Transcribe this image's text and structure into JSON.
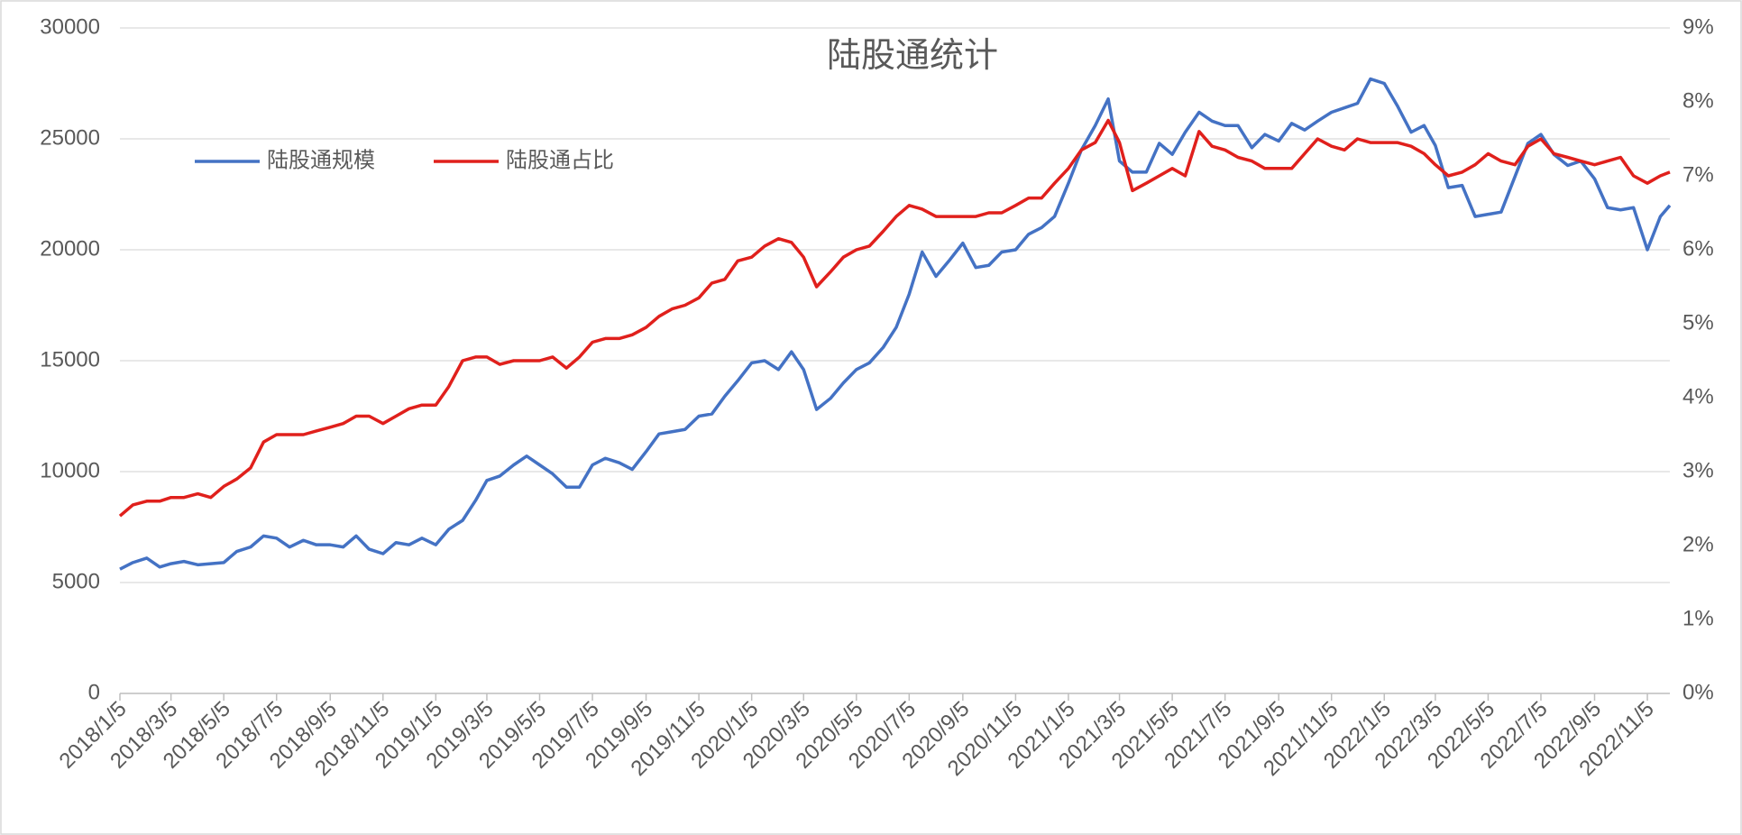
{
  "chart_data": {
    "type": "line",
    "title": "陆股通统计",
    "x": [
      "2018/1/5",
      "2018/1/20",
      "2018/2/5",
      "2018/2/20",
      "2018/3/5",
      "2018/3/20",
      "2018/4/5",
      "2018/4/20",
      "2018/5/5",
      "2018/5/20",
      "2018/6/5",
      "2018/6/20",
      "2018/7/5",
      "2018/7/20",
      "2018/8/5",
      "2018/8/20",
      "2018/9/5",
      "2018/9/20",
      "2018/10/5",
      "2018/10/20",
      "2018/11/5",
      "2018/11/20",
      "2018/12/5",
      "2018/12/20",
      "2019/1/5",
      "2019/1/20",
      "2019/2/5",
      "2019/2/20",
      "2019/3/5",
      "2019/3/20",
      "2019/4/5",
      "2019/4/20",
      "2019/5/5",
      "2019/5/20",
      "2019/6/5",
      "2019/6/20",
      "2019/7/5",
      "2019/7/20",
      "2019/8/5",
      "2019/8/20",
      "2019/9/5",
      "2019/9/20",
      "2019/10/5",
      "2019/10/20",
      "2019/11/5",
      "2019/11/20",
      "2019/12/5",
      "2019/12/20",
      "2020/1/5",
      "2020/1/20",
      "2020/2/5",
      "2020/2/20",
      "2020/3/5",
      "2020/3/20",
      "2020/4/5",
      "2020/4/20",
      "2020/5/5",
      "2020/5/20",
      "2020/6/5",
      "2020/6/20",
      "2020/7/5",
      "2020/7/20",
      "2020/8/5",
      "2020/8/20",
      "2020/9/5",
      "2020/9/20",
      "2020/10/5",
      "2020/10/20",
      "2020/11/5",
      "2020/11/20",
      "2020/12/5",
      "2020/12/20",
      "2021/1/5",
      "2021/1/20",
      "2021/2/5",
      "2021/2/20",
      "2021/3/5",
      "2021/3/20",
      "2021/4/5",
      "2021/4/20",
      "2021/5/5",
      "2021/5/20",
      "2021/6/5",
      "2021/6/20",
      "2021/7/5",
      "2021/7/20",
      "2021/8/5",
      "2021/8/20",
      "2021/9/5",
      "2021/9/20",
      "2021/10/5",
      "2021/10/20",
      "2021/11/5",
      "2021/11/20",
      "2021/12/5",
      "2021/12/20",
      "2022/1/5",
      "2022/1/20",
      "2022/2/5",
      "2022/2/20",
      "2022/3/5",
      "2022/3/20",
      "2022/4/5",
      "2022/4/20",
      "2022/5/5",
      "2022/5/20",
      "2022/6/5",
      "2022/6/20",
      "2022/7/5",
      "2022/7/20",
      "2022/8/5",
      "2022/8/20",
      "2022/9/5",
      "2022/9/20",
      "2022/10/5",
      "2022/10/20",
      "2022/11/5",
      "2022/11/20",
      "2022/12/1"
    ],
    "xlim": [
      "2018/1/5",
      "2022/12/1"
    ],
    "xticks": [
      "2018/1/5",
      "2018/3/5",
      "2018/5/5",
      "2018/7/5",
      "2018/9/5",
      "2018/11/5",
      "2019/1/5",
      "2019/3/5",
      "2019/5/5",
      "2019/7/5",
      "2019/9/5",
      "2019/11/5",
      "2020/1/5",
      "2020/3/5",
      "2020/5/5",
      "2020/7/5",
      "2020/9/5",
      "2020/11/5",
      "2021/1/5",
      "2021/3/5",
      "2021/5/5",
      "2021/7/5",
      "2021/9/5",
      "2021/11/5",
      "2022/1/5",
      "2022/3/5",
      "2022/5/5",
      "2022/7/5",
      "2022/9/5",
      "2022/11/5"
    ],
    "ylim": [
      0,
      30000
    ],
    "yticks": [
      0,
      5000,
      10000,
      15000,
      20000,
      25000,
      30000
    ],
    "y2lim": [
      0,
      9
    ],
    "y2ticks": [
      {
        "value": 0,
        "label": "0%"
      },
      {
        "value": 1,
        "label": "1%"
      },
      {
        "value": 2,
        "label": "2%"
      },
      {
        "value": 3,
        "label": "3%"
      },
      {
        "value": 4,
        "label": "4%"
      },
      {
        "value": 5,
        "label": "5%"
      },
      {
        "value": 6,
        "label": "6%"
      },
      {
        "value": 7,
        "label": "7%"
      },
      {
        "value": 8,
        "label": "8%"
      },
      {
        "value": 9,
        "label": "9%"
      }
    ],
    "grid": true,
    "series": [
      {
        "name": "陆股通规模",
        "color": "#4472c4",
        "values": [
          5600,
          5900,
          6100,
          5700,
          5850,
          5950,
          5800,
          5850,
          5900,
          6400,
          6600,
          7100,
          7000,
          6600,
          6900,
          6700,
          6700,
          6600,
          7100,
          6500,
          6300,
          6800,
          6700,
          7000,
          6700,
          7400,
          7800,
          8700,
          9600,
          9800,
          10300,
          10700,
          10300,
          9900,
          9300,
          9300,
          10300,
          10600,
          10400,
          10100,
          10900,
          11700,
          11800,
          11900,
          12500,
          12600,
          13400,
          14100,
          14900,
          15000,
          14600,
          15400,
          14600,
          12800,
          13300,
          14000,
          14600,
          14900,
          15600,
          16500,
          18000,
          19900,
          18800,
          19500,
          20300,
          19200,
          19300,
          19900,
          20000,
          20700,
          21000,
          21500,
          23000,
          24500,
          25600,
          26800,
          24000,
          23500,
          23500,
          24800,
          24300,
          25300,
          26200,
          25800,
          25600,
          25600,
          24600,
          25200,
          24900,
          25700,
          25400,
          25800,
          26200,
          26400,
          26600,
          27700,
          27500,
          26500,
          25300,
          25600,
          24700,
          22800,
          22900,
          21500,
          21600,
          21700,
          23300,
          24800,
          25200,
          24300,
          23800,
          24000,
          23200,
          21900,
          21800,
          21900,
          20000,
          21500,
          22000
        ]
      },
      {
        "name": "陆股通占比",
        "color": "#e0201c",
        "axis": "y2",
        "values": [
          2.4,
          2.55,
          2.6,
          2.6,
          2.65,
          2.65,
          2.7,
          2.65,
          2.8,
          2.9,
          3.05,
          3.4,
          3.5,
          3.5,
          3.5,
          3.55,
          3.6,
          3.65,
          3.75,
          3.75,
          3.65,
          3.75,
          3.85,
          3.9,
          3.9,
          4.15,
          4.5,
          4.55,
          4.55,
          4.45,
          4.5,
          4.5,
          4.5,
          4.55,
          4.4,
          4.55,
          4.75,
          4.8,
          4.8,
          4.85,
          4.95,
          5.1,
          5.2,
          5.25,
          5.35,
          5.55,
          5.6,
          5.85,
          5.9,
          6.05,
          6.15,
          6.1,
          5.9,
          5.5,
          5.7,
          5.9,
          6.0,
          6.05,
          6.25,
          6.45,
          6.6,
          6.55,
          6.45,
          6.45,
          6.45,
          6.45,
          6.5,
          6.5,
          6.6,
          6.7,
          6.7,
          6.9,
          7.1,
          7.35,
          7.45,
          7.75,
          7.45,
          6.8,
          6.9,
          7.0,
          7.1,
          7.0,
          7.6,
          7.4,
          7.35,
          7.25,
          7.2,
          7.1,
          7.1,
          7.1,
          7.3,
          7.5,
          7.4,
          7.35,
          7.5,
          7.45,
          7.45,
          7.45,
          7.4,
          7.3,
          7.15,
          7.0,
          7.05,
          7.15,
          7.3,
          7.2,
          7.15,
          7.4,
          7.5,
          7.3,
          7.25,
          7.2,
          7.15,
          7.2,
          7.25,
          7.0,
          6.9,
          7.0,
          7.05
        ]
      }
    ]
  }
}
